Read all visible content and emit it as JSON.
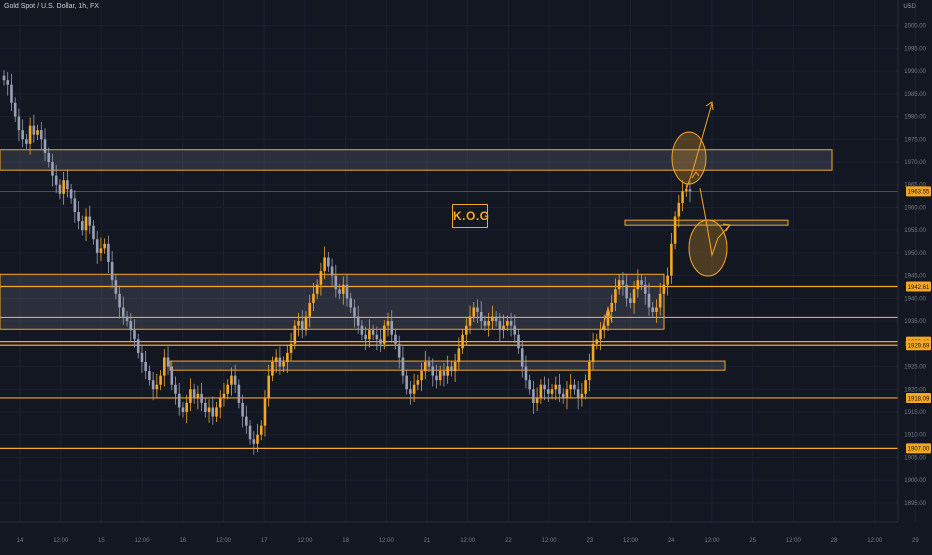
{
  "header": {
    "symbol": "Gold Spot / U.S. Dollar, 1h, FX"
  },
  "brand": {
    "label": "K.O.G"
  },
  "colors": {
    "background": "#131722",
    "accent": "#f5a623",
    "up_candle": "#f5a623",
    "down_candle": "#9aa0b4",
    "grid": "#1c2030",
    "axis_text": "#787b86"
  },
  "chart_data": {
    "type": "candlestick",
    "currency": "USD",
    "ylim": [
      1893,
      2003
    ],
    "y_ticks": [
      1895,
      1900,
      1905,
      1910,
      1915,
      1920,
      1925,
      1930,
      1935,
      1940,
      1945,
      1950,
      1955,
      1960,
      1965,
      1970,
      1975,
      1980,
      1985,
      1990,
      1995,
      2000
    ],
    "x_ticks": [
      "14",
      "12:00",
      "15",
      "12:00",
      "16",
      "12:00",
      "17",
      "12:00",
      "18",
      "12:00",
      "21",
      "12:00",
      "22",
      "12:00",
      "23",
      "12:00",
      "24",
      "12:00",
      "25",
      "12:00",
      "28",
      "12:00",
      "29",
      "12:"
    ],
    "current_price": "1963.55",
    "level_labels": [
      "1942.61",
      "1930.48",
      "1929.69",
      "1918.09",
      "1907.00"
    ],
    "horizontal_levels": [
      1942.61,
      1935.8,
      1930.48,
      1929.69,
      1918.09,
      1907.0
    ],
    "zones": [
      {
        "top": 1972.7,
        "bottom": 1968.2
      },
      {
        "top": 1957.2,
        "bottom": 1956.1
      },
      {
        "top": 1945.3,
        "bottom": 1933.2
      },
      {
        "top": 1926.2,
        "bottom": 1924.2
      }
    ],
    "close_path": [
      1988,
      1987,
      1983,
      1980,
      1977,
      1975,
      1974,
      1978,
      1976,
      1977,
      1975,
      1972,
      1970,
      1967,
      1965,
      1963,
      1966,
      1964,
      1962,
      1959,
      1957,
      1955,
      1958,
      1956,
      1953,
      1950,
      1951,
      1952,
      1948,
      1944,
      1941,
      1938,
      1936,
      1935,
      1933,
      1931,
      1928,
      1926,
      1924,
      1922,
      1920,
      1921,
      1923,
      1927,
      1925,
      1921,
      1919,
      1916,
      1915,
      1917,
      1920,
      1918,
      1919,
      1917,
      1915,
      1916,
      1914,
      1916,
      1918,
      1919,
      1921,
      1923,
      1921,
      1917,
      1914,
      1912,
      1909,
      1908,
      1910,
      1912,
      1918,
      1923,
      1926,
      1927,
      1925,
      1926,
      1928,
      1930,
      1934,
      1935,
      1933,
      1936,
      1939,
      1941,
      1943,
      1946,
      1949,
      1947,
      1945,
      1942,
      1941,
      1943,
      1940,
      1938,
      1936,
      1934,
      1932,
      1931,
      1933,
      1932,
      1931,
      1930,
      1934,
      1935,
      1932,
      1930,
      1927,
      1923,
      1920,
      1919,
      1921,
      1922,
      1924,
      1926,
      1925,
      1923,
      1922,
      1924,
      1923,
      1925,
      1924,
      1926,
      1929,
      1932,
      1934,
      1936,
      1938,
      1937,
      1935,
      1934,
      1935,
      1936,
      1935,
      1933,
      1934,
      1935,
      1934,
      1932,
      1929,
      1925,
      1922,
      1920,
      1917,
      1918,
      1921,
      1920,
      1919,
      1920,
      1921,
      1919,
      1918,
      1920,
      1921,
      1920,
      1918,
      1919,
      1922,
      1926,
      1930,
      1931,
      1933,
      1934,
      1937,
      1939,
      1942,
      1944,
      1943,
      1940,
      1939,
      1942,
      1944,
      1943,
      1941,
      1938,
      1937,
      1938,
      1941,
      1943,
      1945,
      1952,
      1958,
      1961,
      1963.55,
      1964,
      1963.55
    ]
  }
}
